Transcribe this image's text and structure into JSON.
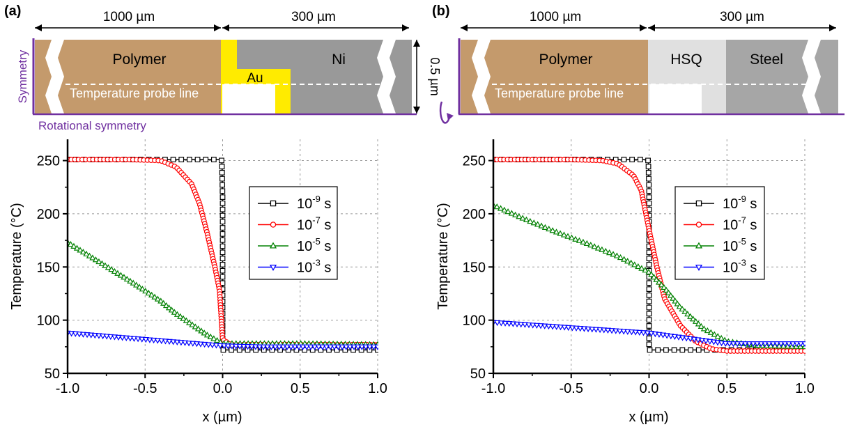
{
  "panels": [
    {
      "id": "a",
      "panel_label": "(a)",
      "schematic": {
        "dim_left": "1000 µm",
        "dim_right": "300 µm",
        "dim_height": "0.5 µm",
        "regions": [
          {
            "key": "polymer",
            "label": "Polymer",
            "color": "#c49a6c"
          },
          {
            "key": "au",
            "label": "Au",
            "color": "#ffeb00"
          },
          {
            "key": "ni",
            "label": "Ni",
            "color": "#999999"
          }
        ],
        "probe_label": "Temperature probe line",
        "side_label": "Symmetry",
        "bottom_label": "Rotational symmetry",
        "accent_color": "#7030a0"
      }
    },
    {
      "id": "b",
      "panel_label": "(b)",
      "schematic": {
        "dim_left": "1000 µm",
        "dim_right": "300 µm",
        "regions": [
          {
            "key": "polymer",
            "label": "Polymer",
            "color": "#c49a6c"
          },
          {
            "key": "hsq",
            "label": "HSQ",
            "color": "#e0e0e0"
          },
          {
            "key": "steel",
            "label": "Steel",
            "color": "#a6a6a6"
          }
        ],
        "probe_label": "Temperature probe line",
        "accent_color": "#7030a0"
      }
    }
  ],
  "legend": {
    "entries": [
      {
        "base": "10",
        "exp": "-9",
        "unit": " s",
        "color": "#000000",
        "marker": "square"
      },
      {
        "base": "10",
        "exp": "-7",
        "unit": " s",
        "color": "#ff0000",
        "marker": "circle"
      },
      {
        "base": "10",
        "exp": "-5",
        "unit": " s",
        "color": "#008000",
        "marker": "triangle-up"
      },
      {
        "base": "10",
        "exp": "-3",
        "unit": " s",
        "color": "#0000ff",
        "marker": "triangle-down"
      }
    ]
  },
  "chart_data": [
    {
      "type": "line",
      "panel": "a",
      "xlabel": "x (µm)",
      "ylabel": "Temperature (°C)",
      "xlim": [
        -1.0,
        1.0
      ],
      "ylim": [
        50,
        270
      ],
      "xticks": [
        "-1.0",
        "-0.5",
        "0.0",
        "0.5",
        "1.0"
      ],
      "yticks": [
        "50",
        "100",
        "150",
        "200",
        "250"
      ],
      "grid": true,
      "legend_position": "right",
      "series": [
        {
          "name": "10-9 s",
          "x": [
            -1.0,
            -0.5,
            -0.1,
            -0.02,
            -0.005,
            0.0,
            0.0,
            0.0,
            0.005,
            0.5,
            1.0
          ],
          "y": [
            251,
            251,
            251,
            251,
            250,
            215,
            130,
            72,
            72,
            72,
            72
          ]
        },
        {
          "name": "10-7 s",
          "x": [
            -1.0,
            -0.6,
            -0.4,
            -0.3,
            -0.2,
            -0.15,
            -0.1,
            -0.05,
            -0.02,
            0.0,
            0.05,
            0.5,
            1.0
          ],
          "y": [
            251,
            251,
            250,
            244,
            228,
            210,
            182,
            150,
            128,
            82,
            77,
            77,
            77
          ]
        },
        {
          "name": "10-5 s",
          "x": [
            -1.0,
            -0.8,
            -0.6,
            -0.4,
            -0.3,
            -0.2,
            -0.1,
            0.0,
            0.2,
            0.5,
            1.0
          ],
          "y": [
            173,
            155,
            137,
            118,
            106,
            96,
            86,
            78,
            78,
            78,
            77
          ]
        },
        {
          "name": "10-3 s",
          "x": [
            -1.0,
            -0.75,
            -0.5,
            -0.25,
            0.0,
            0.25,
            0.5,
            0.75,
            1.0
          ],
          "y": [
            88,
            85,
            82,
            79,
            76,
            75,
            75,
            75,
            75
          ]
        }
      ]
    },
    {
      "type": "line",
      "panel": "b",
      "xlabel": "x (µm)",
      "ylabel": "Temperature (°C)",
      "xlim": [
        -1.0,
        1.0
      ],
      "ylim": [
        50,
        270
      ],
      "xticks": [
        "-1.0",
        "-0.5",
        "0.0",
        "0.5",
        "1.0"
      ],
      "yticks": [
        "50",
        "100",
        "150",
        "200",
        "250"
      ],
      "grid": true,
      "legend_position": "right",
      "series": [
        {
          "name": "10-9 s",
          "x": [
            -1.0,
            -0.5,
            -0.1,
            -0.02,
            -0.005,
            0.0,
            0.0,
            0.0,
            0.005,
            0.5,
            1.0
          ],
          "y": [
            251,
            251,
            251,
            251,
            250,
            220,
            118,
            72,
            72,
            72,
            72
          ]
        },
        {
          "name": "10-7 s",
          "x": [
            -1.0,
            -0.5,
            -0.3,
            -0.2,
            -0.1,
            -0.05,
            0.0,
            0.05,
            0.1,
            0.2,
            0.3,
            0.4,
            0.5,
            0.7,
            1.0
          ],
          "y": [
            251,
            251,
            250,
            247,
            236,
            222,
            185,
            150,
            120,
            95,
            80,
            73,
            71,
            71,
            71
          ]
        },
        {
          "name": "10-5 s",
          "x": [
            -1.0,
            -0.8,
            -0.6,
            -0.4,
            -0.2,
            0.0,
            0.1,
            0.2,
            0.35,
            0.5,
            0.7,
            1.0
          ],
          "y": [
            208,
            195,
            183,
            172,
            160,
            145,
            130,
            112,
            92,
            80,
            76,
            75
          ]
        },
        {
          "name": "10-3 s",
          "x": [
            -1.0,
            -0.5,
            0.0,
            0.25,
            0.5,
            0.75,
            1.0
          ],
          "y": [
            98,
            93,
            88,
            83,
            78,
            78,
            78
          ]
        }
      ]
    }
  ]
}
